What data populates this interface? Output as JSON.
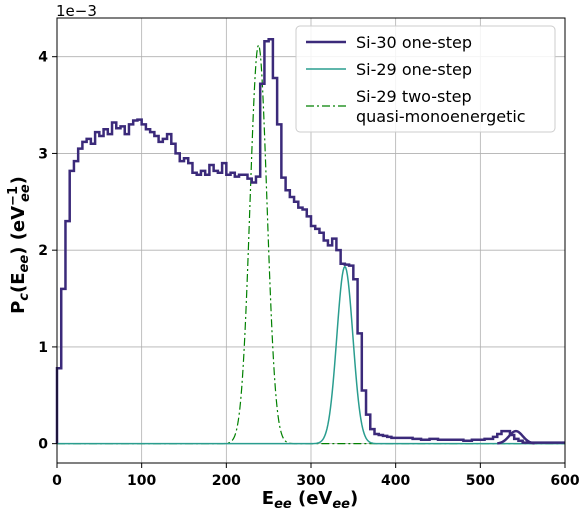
{
  "chart_data": {
    "type": "line",
    "xlabel": {
      "main": "E",
      "sub": "ee",
      "rest": " (eV",
      "rest_sub": "ee",
      "close": ")"
    },
    "ylabel": {
      "main": "P",
      "sub": "c",
      "open": "(E",
      "open_sub": "ee",
      "mid": ") (eV",
      "exp_sub": "ee",
      "exp_sup": "−1",
      "close": ")"
    },
    "offset_text": "1e−3",
    "xlim": [
      0,
      600
    ],
    "ylim": [
      -0.2,
      4.4
    ],
    "x_ticks": [
      0,
      100,
      200,
      300,
      400,
      500,
      600
    ],
    "y_ticks": [
      0,
      1,
      2,
      3,
      4
    ],
    "grid": true,
    "legend_position": "top-right",
    "series": [
      {
        "name": "Si-30 one-step",
        "style": "steps",
        "color": "#3b2a7a",
        "x": [
          0,
          5,
          10,
          15,
          20,
          25,
          30,
          35,
          40,
          45,
          50,
          55,
          60,
          65,
          70,
          75,
          80,
          85,
          90,
          95,
          100,
          105,
          110,
          115,
          120,
          125,
          130,
          135,
          140,
          145,
          150,
          155,
          160,
          165,
          170,
          175,
          180,
          185,
          190,
          195,
          200,
          205,
          210,
          215,
          220,
          225,
          230,
          235,
          240,
          245,
          250,
          255,
          260,
          265,
          270,
          275,
          280,
          285,
          290,
          295,
          300,
          305,
          310,
          315,
          320,
          325,
          330,
          335,
          340,
          345,
          350,
          355,
          360,
          365,
          370,
          375,
          380,
          385,
          390,
          395,
          400,
          410,
          420,
          430,
          440,
          450,
          460,
          470,
          480,
          490,
          500,
          505,
          510,
          515,
          520,
          525,
          530,
          535,
          540,
          545,
          550,
          555,
          560,
          565,
          570,
          575,
          580,
          585,
          590,
          595,
          600
        ],
        "values": [
          0.78,
          1.6,
          2.3,
          2.82,
          2.92,
          3.05,
          3.12,
          3.15,
          3.1,
          3.22,
          3.18,
          3.25,
          3.2,
          3.32,
          3.26,
          3.28,
          3.2,
          3.3,
          3.34,
          3.35,
          3.3,
          3.25,
          3.22,
          3.18,
          3.12,
          3.15,
          3.2,
          3.1,
          3.0,
          2.92,
          2.95,
          2.9,
          2.8,
          2.78,
          2.82,
          2.78,
          2.88,
          2.82,
          2.8,
          2.9,
          2.78,
          2.8,
          2.76,
          2.78,
          2.78,
          2.74,
          2.7,
          2.76,
          3.72,
          4.16,
          4.18,
          3.78,
          3.3,
          2.75,
          2.62,
          2.55,
          2.5,
          2.44,
          2.42,
          2.35,
          2.25,
          2.22,
          2.18,
          2.1,
          2.05,
          2.12,
          2.0,
          1.86,
          1.85,
          1.84,
          1.7,
          1.14,
          0.55,
          0.3,
          0.15,
          0.1,
          0.09,
          0.08,
          0.07,
          0.06,
          0.06,
          0.06,
          0.05,
          0.04,
          0.05,
          0.04,
          0.04,
          0.04,
          0.03,
          0.04,
          0.04,
          0.05,
          0.05,
          0.07,
          0.1,
          0.13,
          0.13,
          0.09,
          0.05,
          0.03,
          0.01,
          0.01,
          0.01,
          0.01,
          0.01,
          0.01,
          0.01,
          0.01,
          0.01,
          0.01,
          0.01
        ],
        "width": 2.5
      },
      {
        "name": "Si-29 one-step",
        "style": "gaussian",
        "color": "#2a9d8f",
        "center": 340,
        "amplitude": 1.83,
        "sigma": 9.5,
        "width": 1.5
      },
      {
        "name": "Si-29 two-step\nquasi-monoenergetic",
        "style": "gaussian",
        "color": "#008000",
        "center": 238,
        "amplitude": 4.12,
        "sigma": 10,
        "dash": "8,3,2,3",
        "width": 1.2
      }
    ],
    "secondary_peak": {
      "center": 542,
      "amplitude": 0.13,
      "sigma": 8
    }
  },
  "legend": {
    "items": [
      {
        "label_lines": [
          "Si-30 one-step"
        ]
      },
      {
        "label_lines": [
          "Si-29 one-step"
        ]
      },
      {
        "label_lines": [
          "Si-29 two-step",
          "quasi-monoenergetic"
        ]
      }
    ]
  }
}
